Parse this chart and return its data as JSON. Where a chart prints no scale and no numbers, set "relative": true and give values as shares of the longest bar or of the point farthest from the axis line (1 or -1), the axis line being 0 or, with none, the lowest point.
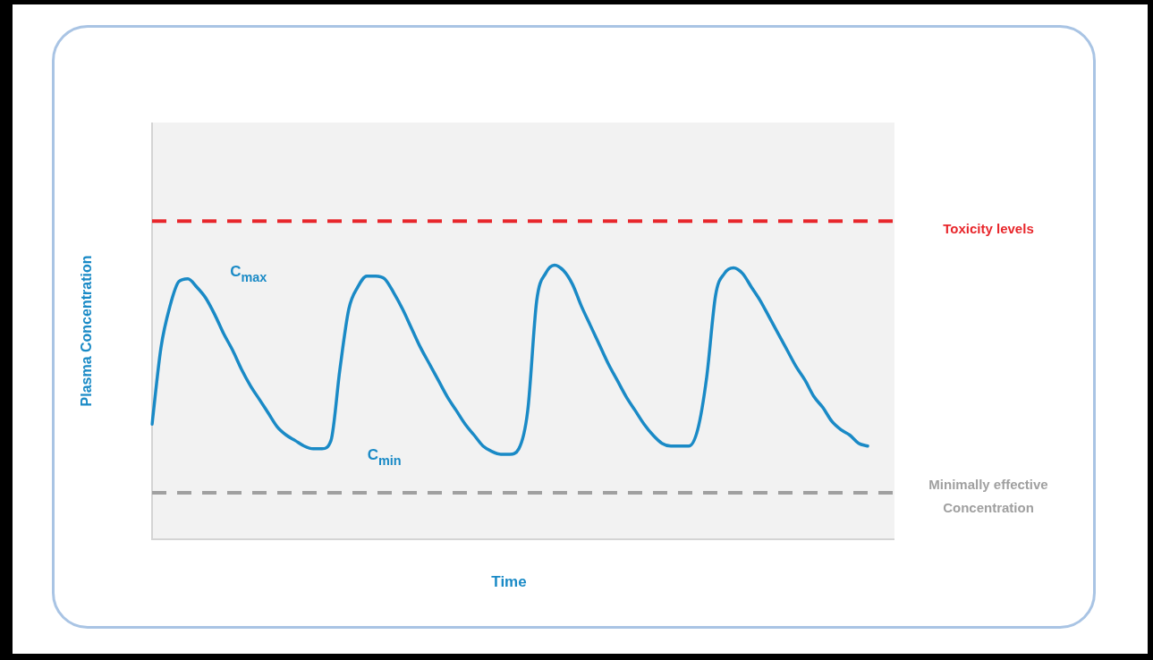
{
  "chart_data": {
    "type": "line",
    "relative": true,
    "xlabel": "Time",
    "ylabel": "Plasma Concentration",
    "legend": false,
    "marker": "none",
    "line_style": "solid",
    "categories": [
      null,
      null,
      null,
      null,
      null,
      null,
      null,
      null,
      null,
      null,
      null,
      null,
      null,
      null,
      null,
      null,
      null,
      null,
      null,
      null,
      null,
      null,
      null,
      null,
      null,
      null,
      null,
      null,
      null,
      null,
      null,
      null,
      null,
      null,
      null,
      null,
      null,
      null,
      null,
      null,
      null,
      null,
      null,
      null,
      null,
      null,
      null,
      null,
      null,
      null,
      null,
      null,
      null,
      null,
      null,
      null,
      null,
      null,
      null,
      null,
      null,
      null,
      null,
      null,
      null,
      null,
      null,
      null,
      null,
      null,
      null,
      null,
      null,
      null,
      null,
      null,
      null,
      null,
      null,
      null,
      null,
      null,
      null,
      null
    ],
    "series": [
      {
        "color": "#1a8ac6",
        "values": [
          0.42,
          0.7,
          0.85,
          0.94,
          0.95,
          0.92,
          0.88,
          0.82,
          0.75,
          0.69,
          0.62,
          0.56,
          0.51,
          0.46,
          0.41,
          0.38,
          0.36,
          0.34,
          0.33,
          0.33,
          0.36,
          0.62,
          0.84,
          0.92,
          0.96,
          0.96,
          0.95,
          0.9,
          0.84,
          0.77,
          0.7,
          0.64,
          0.58,
          0.52,
          0.47,
          0.42,
          0.38,
          0.34,
          0.32,
          0.31,
          0.31,
          0.33,
          0.47,
          0.87,
          0.97,
          1.0,
          0.98,
          0.93,
          0.85,
          0.78,
          0.71,
          0.64,
          0.58,
          0.52,
          0.47,
          0.42,
          0.38,
          0.35,
          0.34,
          0.34,
          0.34,
          0.4,
          0.59,
          0.89,
          0.97,
          0.99,
          0.97,
          0.92,
          0.87,
          0.81,
          0.75,
          0.69,
          0.63,
          0.58,
          0.52,
          0.48,
          0.43,
          0.4,
          0.38,
          0.35,
          0.34,
          null,
          null,
          null
        ]
      }
    ],
    "ref_lines": [
      {
        "axis": "y",
        "value": 1.16,
        "label": "Toxicity levels",
        "color": "#e8262b",
        "line_style": "dashed"
      },
      {
        "axis": "y",
        "value": 0.17,
        "label": "Minimally effective Concentration",
        "color": "#a0a0a0",
        "line_style": "dashed"
      }
    ],
    "annotations": [
      "C$_{max}$",
      "C$_{min}$"
    ]
  }
}
